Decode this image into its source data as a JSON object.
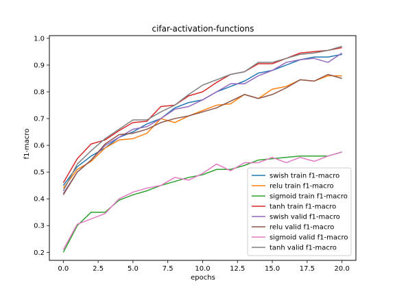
{
  "chart_data": {
    "type": "line",
    "title": "cifar-activation-functions",
    "xlabel": "epochs",
    "ylabel": "f1-macro",
    "xlim": [
      -1,
      21
    ],
    "ylim": [
      0.17,
      1.01
    ],
    "xticks": [
      0.0,
      2.5,
      5.0,
      7.5,
      10.0,
      12.5,
      15.0,
      17.5,
      20.0
    ],
    "xtick_labels": [
      "0.0",
      "2.5",
      "5.0",
      "7.5",
      "10.0",
      "12.5",
      "15.0",
      "17.5",
      "20.0"
    ],
    "yticks": [
      0.2,
      0.3,
      0.4,
      0.5,
      0.6,
      0.7,
      0.8,
      0.9,
      1.0
    ],
    "ytick_labels": [
      "0.2",
      "0.3",
      "0.4",
      "0.5",
      "0.6",
      "0.7",
      "0.8",
      "0.9",
      "1.0"
    ],
    "grid": false,
    "legend_position": "lower-right",
    "x": [
      0,
      1,
      2,
      3,
      4,
      5,
      6,
      7,
      8,
      9,
      10,
      11,
      12,
      13,
      14,
      15,
      16,
      17,
      18,
      19,
      20
    ],
    "series": [
      {
        "name": "swish train f1-macro",
        "color": "#1f77b4",
        "values": [
          0.45,
          0.52,
          0.56,
          0.59,
          0.63,
          0.65,
          0.68,
          0.7,
          0.74,
          0.76,
          0.77,
          0.8,
          0.82,
          0.84,
          0.87,
          0.88,
          0.9,
          0.92,
          0.93,
          0.93,
          0.94
        ]
      },
      {
        "name": "relu train f1-macro",
        "color": "#ff7f0e",
        "values": [
          0.44,
          0.51,
          0.54,
          0.59,
          0.62,
          0.625,
          0.645,
          0.7,
          0.685,
          0.71,
          0.73,
          0.75,
          0.755,
          0.79,
          0.775,
          0.81,
          0.82,
          0.845,
          0.84,
          0.86,
          0.86
        ]
      },
      {
        "name": "sigmoid train f1-macro",
        "color": "#2ca02c",
        "values": [
          0.2,
          0.3,
          0.35,
          0.35,
          0.395,
          0.415,
          0.43,
          0.45,
          0.465,
          0.48,
          0.49,
          0.51,
          0.51,
          0.525,
          0.545,
          0.55,
          0.555,
          0.56,
          0.56,
          0.56,
          0.575
        ]
      },
      {
        "name": "tanh train f1-macro",
        "color": "#d62728",
        "values": [
          0.46,
          0.55,
          0.605,
          0.62,
          0.655,
          0.685,
          0.69,
          0.745,
          0.75,
          0.785,
          0.8,
          0.835,
          0.865,
          0.875,
          0.905,
          0.905,
          0.925,
          0.945,
          0.95,
          0.955,
          0.965
        ]
      },
      {
        "name": "swish valid f1-macro",
        "color": "#9467bd",
        "values": [
          0.42,
          0.5,
          0.545,
          0.6,
          0.63,
          0.66,
          0.67,
          0.7,
          0.735,
          0.745,
          0.77,
          0.8,
          0.83,
          0.83,
          0.86,
          0.88,
          0.91,
          0.92,
          0.925,
          0.91,
          0.945
        ]
      },
      {
        "name": "relu valid f1-macro",
        "color": "#8c564b",
        "values": [
          0.415,
          0.5,
          0.545,
          0.605,
          0.64,
          0.645,
          0.66,
          0.685,
          0.7,
          0.71,
          0.725,
          0.74,
          0.765,
          0.79,
          0.775,
          0.79,
          0.815,
          0.845,
          0.84,
          0.865,
          0.85
        ]
      },
      {
        "name": "sigmoid valid f1-macro",
        "color": "#e377c2",
        "values": [
          0.21,
          0.305,
          0.325,
          0.345,
          0.4,
          0.425,
          0.44,
          0.45,
          0.48,
          0.47,
          0.495,
          0.53,
          0.505,
          0.535,
          0.535,
          0.555,
          0.535,
          0.555,
          0.54,
          0.56,
          0.575
        ]
      },
      {
        "name": "tanh valid f1-macro",
        "color": "#7f7f7f",
        "values": [
          0.43,
          0.53,
          0.58,
          0.625,
          0.66,
          0.695,
          0.695,
          0.725,
          0.75,
          0.79,
          0.825,
          0.845,
          0.865,
          0.875,
          0.91,
          0.91,
          0.925,
          0.94,
          0.945,
          0.955,
          0.97
        ]
      }
    ]
  }
}
